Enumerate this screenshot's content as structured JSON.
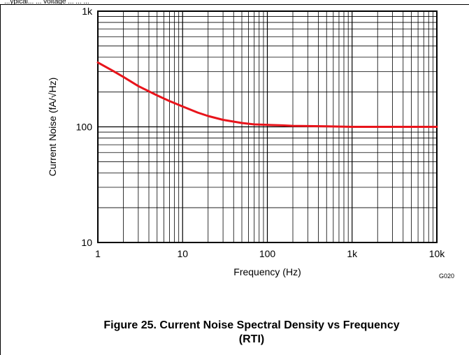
{
  "header_fragment": "...ypical... ... voltage ... ... ...",
  "figure_code": "G020",
  "caption": {
    "line1": "Figure 25. Current Noise Spectral Density vs Frequency",
    "line2": "(RTI)"
  },
  "chart_data": {
    "type": "line",
    "xscale": "log",
    "yscale": "log",
    "xlim": [
      1,
      10000
    ],
    "ylim": [
      10,
      1000
    ],
    "xlabel": "Frequency (Hz)",
    "ylabel": "Current Noise (fA/√Hz)",
    "x_ticks": [
      {
        "value": 1,
        "label": "1"
      },
      {
        "value": 10,
        "label": "10"
      },
      {
        "value": 100,
        "label": "100"
      },
      {
        "value": 1000,
        "label": "1k"
      },
      {
        "value": 10000,
        "label": "10k"
      }
    ],
    "y_ticks": [
      {
        "value": 10,
        "label": "10"
      },
      {
        "value": 100,
        "label": "100"
      },
      {
        "value": 1000,
        "label": "1k"
      }
    ],
    "grid": true,
    "line_color": "#e8141b",
    "series": [
      {
        "x": [
          1,
          1.5,
          2,
          3,
          5,
          7,
          10,
          15,
          20,
          30,
          50,
          70,
          100,
          150,
          200,
          300,
          500,
          700,
          1000,
          2000,
          5000,
          10000
        ],
        "y": [
          360,
          305,
          270,
          225,
          187,
          167,
          150,
          133,
          124,
          115,
          108,
          105,
          104,
          103,
          102,
          101.5,
          101,
          100.5,
          100,
          100,
          100,
          100
        ]
      }
    ]
  }
}
